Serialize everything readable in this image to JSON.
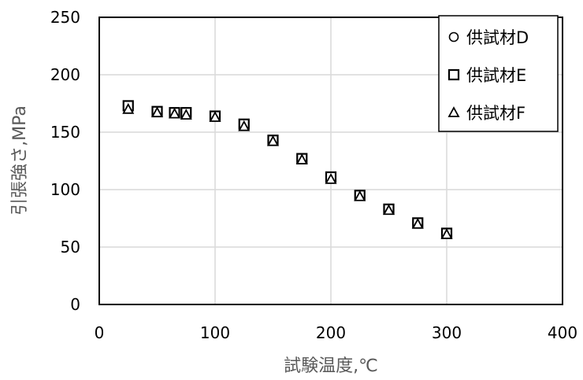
{
  "chart_data": {
    "type": "scatter",
    "title": "",
    "xlabel": "試験温度,℃",
    "ylabel": "引張強さ,MPa",
    "xlim": [
      0,
      400
    ],
    "ylim": [
      0,
      250
    ],
    "xticks": [
      "0",
      "100",
      "200",
      "300",
      "400"
    ],
    "yticks": [
      "0",
      "50",
      "100",
      "150",
      "200",
      "250"
    ],
    "grid": true,
    "legend_position": "top-right",
    "series": [
      {
        "name": "供試材D",
        "marker": "circle",
        "points": [
          {
            "x": 25,
            "y": 171
          },
          {
            "x": 50,
            "y": 168
          },
          {
            "x": 65,
            "y": 167
          },
          {
            "x": 75,
            "y": 166
          },
          {
            "x": 100,
            "y": 164
          },
          {
            "x": 125,
            "y": 156
          },
          {
            "x": 150,
            "y": 143
          },
          {
            "x": 175,
            "y": 127
          },
          {
            "x": 200,
            "y": 110
          },
          {
            "x": 225,
            "y": 95
          },
          {
            "x": 250,
            "y": 83
          },
          {
            "x": 275,
            "y": 71
          },
          {
            "x": 300,
            "y": 62
          }
        ]
      },
      {
        "name": "供試材E",
        "marker": "square",
        "points": [
          {
            "x": 25,
            "y": 173
          },
          {
            "x": 50,
            "y": 168
          },
          {
            "x": 65,
            "y": 167
          },
          {
            "x": 75,
            "y": 167
          },
          {
            "x": 100,
            "y": 164
          },
          {
            "x": 125,
            "y": 157
          },
          {
            "x": 150,
            "y": 143
          },
          {
            "x": 175,
            "y": 127
          },
          {
            "x": 200,
            "y": 111
          },
          {
            "x": 225,
            "y": 95
          },
          {
            "x": 250,
            "y": 83
          },
          {
            "x": 275,
            "y": 71
          },
          {
            "x": 300,
            "y": 62
          }
        ]
      },
      {
        "name": "供試材F",
        "marker": "triangle",
        "points": [
          {
            "x": 25,
            "y": 170
          },
          {
            "x": 50,
            "y": 167
          },
          {
            "x": 65,
            "y": 166
          },
          {
            "x": 75,
            "y": 165
          },
          {
            "x": 100,
            "y": 163
          },
          {
            "x": 125,
            "y": 155
          },
          {
            "x": 150,
            "y": 142
          },
          {
            "x": 175,
            "y": 126
          },
          {
            "x": 200,
            "y": 109
          },
          {
            "x": 225,
            "y": 94
          },
          {
            "x": 250,
            "y": 82
          },
          {
            "x": 275,
            "y": 70
          },
          {
            "x": 300,
            "y": 61
          }
        ]
      }
    ]
  },
  "colors": {
    "marker_stroke": "#000000",
    "grid": "#d9d9d9",
    "axis": "#000000",
    "axis_title": "#595959"
  }
}
